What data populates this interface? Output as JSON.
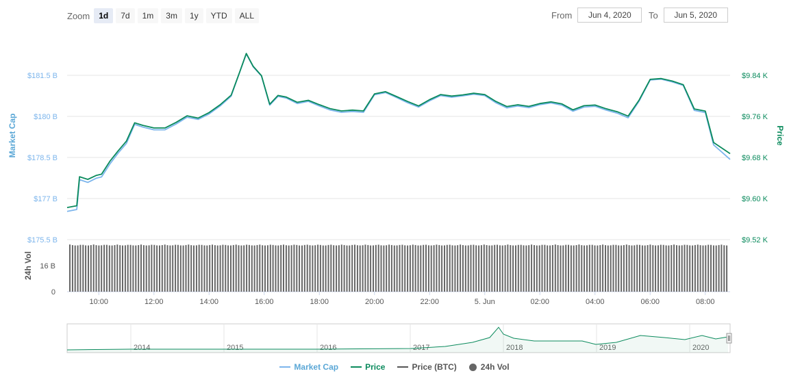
{
  "toolbar": {
    "zoom_label": "Zoom",
    "zoom_buttons": [
      "1d",
      "7d",
      "1m",
      "3m",
      "1y",
      "YTD",
      "ALL"
    ],
    "active_zoom": "1d",
    "from_label": "From",
    "from_value": "Jun 4, 2020",
    "to_label": "To",
    "to_value": "Jun 5, 2020"
  },
  "legend": {
    "market_cap": "Market Cap",
    "price": "Price",
    "price_btc": "Price (BTC)",
    "vol": "24h Vol"
  },
  "colors": {
    "market_cap": "#7cb5ec",
    "price": "#0a8a5c",
    "price_btc": "#555555",
    "vol": "#666666",
    "grid": "#e6e6e6"
  },
  "chart_data": {
    "type": "line",
    "title": "",
    "left_axis": {
      "title": "Market Cap",
      "ticks": [
        {
          "value": 181.5,
          "label": "$181.5 B"
        },
        {
          "value": 180,
          "label": "$180 B"
        },
        {
          "value": 178.5,
          "label": "$178.5 B"
        },
        {
          "value": 177,
          "label": "$177 B"
        },
        {
          "value": 175.5,
          "label": "$175.5 B"
        }
      ],
      "range": [
        175.5,
        183
      ]
    },
    "right_axis": {
      "title": "Price",
      "ticks": [
        {
          "value": 9.84,
          "label": "$9.84 K"
        },
        {
          "value": 9.76,
          "label": "$9.76 K"
        },
        {
          "value": 9.68,
          "label": "$9.68 K"
        },
        {
          "value": 9.6,
          "label": "$9.60 K"
        },
        {
          "value": 9.52,
          "label": "$9.52 K"
        }
      ],
      "range": [
        9.52,
        9.92
      ]
    },
    "volume_axis": {
      "title": "24h Vol",
      "ticks": [
        {
          "value": 16,
          "label": "16 B"
        },
        {
          "value": 0,
          "label": "0"
        }
      ],
      "range": [
        0,
        32
      ]
    },
    "x_axis": {
      "range_hours": [
        8.85,
        32.9
      ],
      "ticks": [
        {
          "h": 10,
          "label": "10:00"
        },
        {
          "h": 12,
          "label": "12:00"
        },
        {
          "h": 14,
          "label": "14:00"
        },
        {
          "h": 16,
          "label": "16:00"
        },
        {
          "h": 18,
          "label": "18:00"
        },
        {
          "h": 20,
          "label": "20:00"
        },
        {
          "h": 22,
          "label": "22:00"
        },
        {
          "h": 24,
          "label": "5. Jun"
        },
        {
          "h": 26,
          "label": "02:00"
        },
        {
          "h": 28,
          "label": "04:00"
        },
        {
          "h": 30,
          "label": "06:00"
        },
        {
          "h": 32,
          "label": "08:00"
        }
      ]
    },
    "price_series": [
      [
        8.85,
        9.5825
      ],
      [
        9.2,
        9.586
      ],
      [
        9.3,
        9.6425
      ],
      [
        9.6,
        9.6374
      ],
      [
        9.9,
        9.645
      ],
      [
        10.1,
        9.6475
      ],
      [
        10.4,
        9.6725
      ],
      [
        10.7,
        9.693
      ],
      [
        11.0,
        9.7117
      ],
      [
        11.3,
        9.7475
      ],
      [
        11.6,
        9.7425
      ],
      [
        12.0,
        9.7375
      ],
      [
        12.4,
        9.7375
      ],
      [
        12.8,
        9.7482
      ],
      [
        13.2,
        9.7612
      ],
      [
        13.6,
        9.7567
      ],
      [
        14.0,
        9.7675
      ],
      [
        14.4,
        9.7826
      ],
      [
        14.8,
        9.8014
      ],
      [
        15.1,
        9.8451
      ],
      [
        15.35,
        9.8825
      ],
      [
        15.6,
        9.8575
      ],
      [
        15.9,
        9.8393
      ],
      [
        16.2,
        9.7838
      ],
      [
        16.5,
        9.8008
      ],
      [
        16.8,
        9.7976
      ],
      [
        17.2,
        9.7875
      ],
      [
        17.6,
        9.7913
      ],
      [
        18.0,
        9.7828
      ],
      [
        18.4,
        9.7749
      ],
      [
        18.8,
        9.7706
      ],
      [
        19.2,
        9.7723
      ],
      [
        19.6,
        9.7706
      ],
      [
        20.0,
        9.8039
      ],
      [
        20.4,
        9.8081
      ],
      [
        20.8,
        9.7987
      ],
      [
        21.2,
        9.7891
      ],
      [
        21.6,
        9.7804
      ],
      [
        22.0,
        9.7926
      ],
      [
        22.4,
        9.8025
      ],
      [
        22.8,
        9.7996
      ],
      [
        23.2,
        9.8019
      ],
      [
        23.6,
        9.8051
      ],
      [
        24.0,
        9.8025
      ],
      [
        24.4,
        9.7892
      ],
      [
        24.8,
        9.7792
      ],
      [
        25.2,
        9.7826
      ],
      [
        25.6,
        9.7794
      ],
      [
        26.0,
        9.7851
      ],
      [
        26.4,
        9.7882
      ],
      [
        26.8,
        9.7843
      ],
      [
        27.2,
        9.7728
      ],
      [
        27.6,
        9.7808
      ],
      [
        28.0,
        9.7822
      ],
      [
        28.4,
        9.7749
      ],
      [
        28.8,
        9.7692
      ],
      [
        29.2,
        9.7605
      ],
      [
        29.6,
        9.7919
      ],
      [
        30.0,
        9.8321
      ],
      [
        30.4,
        9.8337
      ],
      [
        30.8,
        9.8288
      ],
      [
        31.2,
        9.8218
      ],
      [
        31.6,
        9.7745
      ],
      [
        32.0,
        9.7704
      ],
      [
        32.3,
        9.7092
      ],
      [
        32.9,
        9.6875
      ]
    ],
    "market_cap_series": [
      [
        8.85,
        176.53
      ],
      [
        9.2,
        176.6
      ],
      [
        9.3,
        177.69
      ],
      [
        9.6,
        177.59
      ],
      [
        9.9,
        177.74
      ],
      [
        10.1,
        177.79
      ],
      [
        10.4,
        178.26
      ],
      [
        10.7,
        178.66
      ],
      [
        11.0,
        179.01
      ],
      [
        11.3,
        179.71
      ],
      [
        11.6,
        179.61
      ],
      [
        12.0,
        179.51
      ],
      [
        12.4,
        179.51
      ],
      [
        12.8,
        179.72
      ],
      [
        13.2,
        179.97
      ],
      [
        13.6,
        179.89
      ],
      [
        14.0,
        180.09
      ],
      [
        14.4,
        180.38
      ],
      [
        14.8,
        180.74
      ],
      [
        15.1,
        181.59
      ],
      [
        15.35,
        182.28
      ],
      [
        15.6,
        181.81
      ],
      [
        15.9,
        181.47
      ],
      [
        16.2,
        180.41
      ],
      [
        16.5,
        180.73
      ],
      [
        16.8,
        180.67
      ],
      [
        17.2,
        180.47
      ],
      [
        17.6,
        180.55
      ],
      [
        18.0,
        180.38
      ],
      [
        18.4,
        180.23
      ],
      [
        18.8,
        180.15
      ],
      [
        19.2,
        180.18
      ],
      [
        19.6,
        180.15
      ],
      [
        20.0,
        180.79
      ],
      [
        20.4,
        180.87
      ],
      [
        20.8,
        180.69
      ],
      [
        21.2,
        180.5
      ],
      [
        21.6,
        180.34
      ],
      [
        22.0,
        180.57
      ],
      [
        22.4,
        180.76
      ],
      [
        22.8,
        180.7
      ],
      [
        23.2,
        180.75
      ],
      [
        23.6,
        180.81
      ],
      [
        24.0,
        180.76
      ],
      [
        24.4,
        180.5
      ],
      [
        24.8,
        180.31
      ],
      [
        25.2,
        180.38
      ],
      [
        25.6,
        180.32
      ],
      [
        26.0,
        180.43
      ],
      [
        26.4,
        180.49
      ],
      [
        26.8,
        180.41
      ],
      [
        27.2,
        180.19
      ],
      [
        27.6,
        180.34
      ],
      [
        28.0,
        180.37
      ],
      [
        28.4,
        180.23
      ],
      [
        28.8,
        180.12
      ],
      [
        29.2,
        179.95
      ],
      [
        29.6,
        180.56
      ],
      [
        30.0,
        181.33
      ],
      [
        30.4,
        181.36
      ],
      [
        30.8,
        181.26
      ],
      [
        31.2,
        181.13
      ],
      [
        31.6,
        180.22
      ],
      [
        32.0,
        180.14
      ],
      [
        32.3,
        178.96
      ],
      [
        32.9,
        178.43
      ]
    ],
    "volume_level": 29,
    "navigator": {
      "labels": [
        "2014",
        "2015",
        "2016",
        "2017",
        "2018",
        "2019",
        "2020"
      ]
    }
  }
}
